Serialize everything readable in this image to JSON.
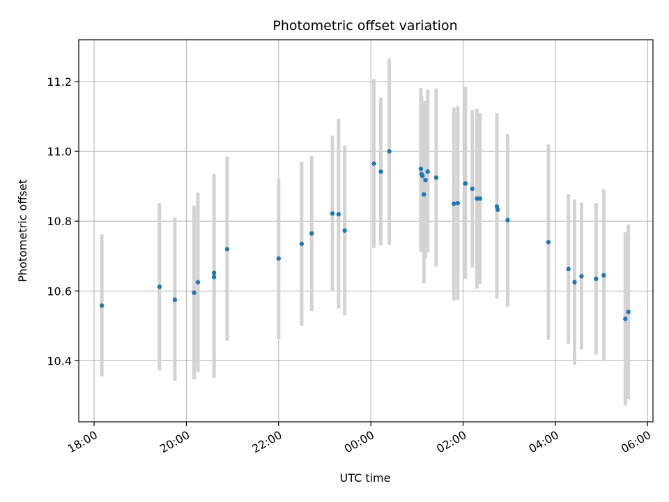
{
  "chart_data": {
    "type": "scatter",
    "title": "Photometric offset variation",
    "xlabel": "UTC time",
    "ylabel": "Photometric offset",
    "x_tick_labels": [
      "18:00",
      "20:00",
      "22:00",
      "00:00",
      "02:00",
      "04:00",
      "06:00"
    ],
    "y_tick_labels": [
      "10.4",
      "10.6",
      "10.8",
      "11.0",
      "11.2"
    ],
    "xlim": [
      "17:40",
      "06:07"
    ],
    "ylim": [
      10.225,
      11.32
    ],
    "grid": true,
    "errorbar_color": "#d3d3d3",
    "marker_color": "#1f77b4",
    "points": [
      {
        "t": "18:10",
        "y": 10.558,
        "lo": 10.355,
        "hi": 10.762
      },
      {
        "t": "19:25",
        "y": 10.612,
        "lo": 10.372,
        "hi": 10.852
      },
      {
        "t": "19:45",
        "y": 10.575,
        "lo": 10.343,
        "hi": 10.81
      },
      {
        "t": "20:10",
        "y": 10.595,
        "lo": 10.347,
        "hi": 10.845
      },
      {
        "t": "20:15",
        "y": 10.625,
        "lo": 10.368,
        "hi": 10.882
      },
      {
        "t": "20:36",
        "y": 10.64,
        "lo": 10.35,
        "hi": 10.935
      },
      {
        "t": "20:36",
        "y": 10.652
      },
      {
        "t": "20:53",
        "y": 10.72,
        "lo": 10.457,
        "hi": 10.985
      },
      {
        "t": "22:00",
        "y": 10.693,
        "lo": 10.463,
        "hi": 10.922
      },
      {
        "t": "22:30",
        "y": 10.735,
        "lo": 10.5,
        "hi": 10.97
      },
      {
        "t": "22:43",
        "y": 10.765,
        "lo": 10.542,
        "hi": 10.987
      },
      {
        "t": "23:10",
        "y": 10.822,
        "lo": 10.602,
        "hi": 11.045
      },
      {
        "t": "23:18",
        "y": 10.82,
        "lo": 10.55,
        "hi": 11.093
      },
      {
        "t": "23:26",
        "y": 10.773,
        "lo": 10.53,
        "hi": 11.017
      },
      {
        "t": "00:04",
        "y": 10.965,
        "lo": 10.723,
        "hi": 11.207
      },
      {
        "t": "00:13",
        "y": 10.942,
        "lo": 10.73,
        "hi": 11.155
      },
      {
        "t": "00:24",
        "y": 11.0,
        "lo": 10.732,
        "hi": 11.267
      },
      {
        "t": "01:05",
        "y": 10.95,
        "lo": 10.715,
        "hi": 11.182
      },
      {
        "t": "01:06",
        "y": 10.935,
        "lo": 10.712,
        "hi": 11.16
      },
      {
        "t": "01:07",
        "y": 10.93
      },
      {
        "t": "01:09",
        "y": 10.877,
        "lo": 10.622,
        "hi": 11.14
      },
      {
        "t": "01:11",
        "y": 10.918,
        "lo": 10.695,
        "hi": 11.145
      },
      {
        "t": "01:14",
        "y": 10.942,
        "lo": 10.71,
        "hi": 11.177
      },
      {
        "t": "01:25",
        "y": 10.925,
        "lo": 10.67,
        "hi": 11.18
      },
      {
        "t": "01:48",
        "y": 10.85,
        "lo": 10.573,
        "hi": 11.125
      },
      {
        "t": "01:53",
        "y": 10.852,
        "lo": 10.575,
        "hi": 11.13
      },
      {
        "t": "02:03",
        "y": 10.908,
        "lo": 10.635,
        "hi": 11.185
      },
      {
        "t": "02:12",
        "y": 10.893,
        "lo": 10.667,
        "hi": 11.118
      },
      {
        "t": "02:18",
        "y": 10.865,
        "lo": 10.607,
        "hi": 11.122
      },
      {
        "t": "02:22",
        "y": 10.865,
        "lo": 10.62,
        "hi": 11.11
      },
      {
        "t": "02:44",
        "y": 10.842,
        "lo": 10.578,
        "hi": 11.11
      },
      {
        "t": "02:45",
        "y": 10.833
      },
      {
        "t": "02:58",
        "y": 10.803,
        "lo": 10.555,
        "hi": 11.05
      },
      {
        "t": "03:51",
        "y": 10.74,
        "lo": 10.46,
        "hi": 11.02
      },
      {
        "t": "04:17",
        "y": 10.663,
        "lo": 10.448,
        "hi": 10.878
      },
      {
        "t": "04:25",
        "y": 10.625,
        "lo": 10.388,
        "hi": 10.862
      },
      {
        "t": "04:34",
        "y": 10.642,
        "lo": 10.432,
        "hi": 10.853
      },
      {
        "t": "04:53",
        "y": 10.635,
        "lo": 10.418,
        "hi": 10.852
      },
      {
        "t": "05:03",
        "y": 10.645,
        "lo": 10.4,
        "hi": 10.892
      },
      {
        "t": "05:31",
        "y": 10.52,
        "lo": 10.272,
        "hi": 10.768
      },
      {
        "t": "05:35",
        "y": 10.54,
        "lo": 10.29,
        "hi": 10.79
      }
    ]
  }
}
